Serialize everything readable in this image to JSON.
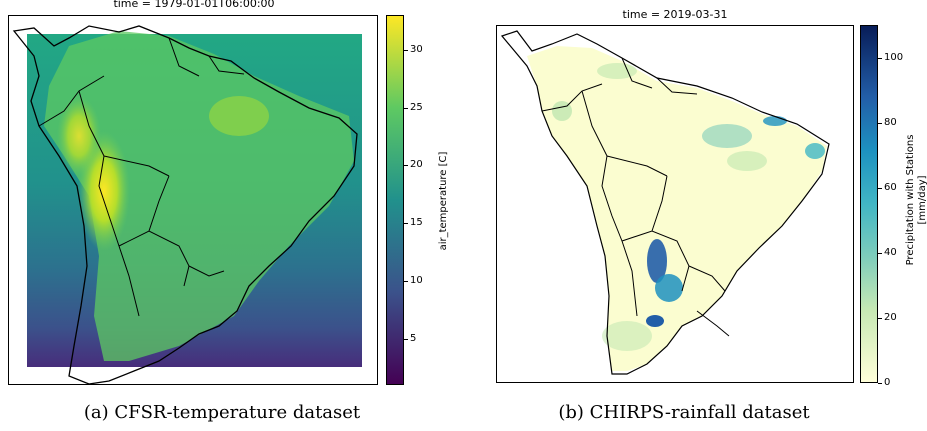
{
  "panel_a": {
    "title": "time = 1979-01-01T06:00:00",
    "colorbar_label": "air_temperature [C]",
    "colorbar_ticks": [
      "5",
      "10",
      "15",
      "20",
      "25",
      "30"
    ],
    "colorbar_range": [
      1,
      33
    ],
    "colormap": [
      "#440154",
      "#3b528b",
      "#21918c",
      "#5ec962",
      "#fde725"
    ],
    "caption": "(a) CFSR-temperature dataset"
  },
  "panel_b": {
    "title": "time = 2019-03-31",
    "colorbar_label_line1": "Precipitation with Stations",
    "colorbar_label_line2": "[mm/day]",
    "colorbar_ticks": [
      "0",
      "20",
      "40",
      "60",
      "80",
      "100"
    ],
    "colorbar_range": [
      0,
      110
    ],
    "colormap": [
      "#ffffd9",
      "#c7e9b4",
      "#41b6c4",
      "#225ea8",
      "#081d58"
    ],
    "caption": "(b) CHIRPS-rainfall dataset"
  }
}
